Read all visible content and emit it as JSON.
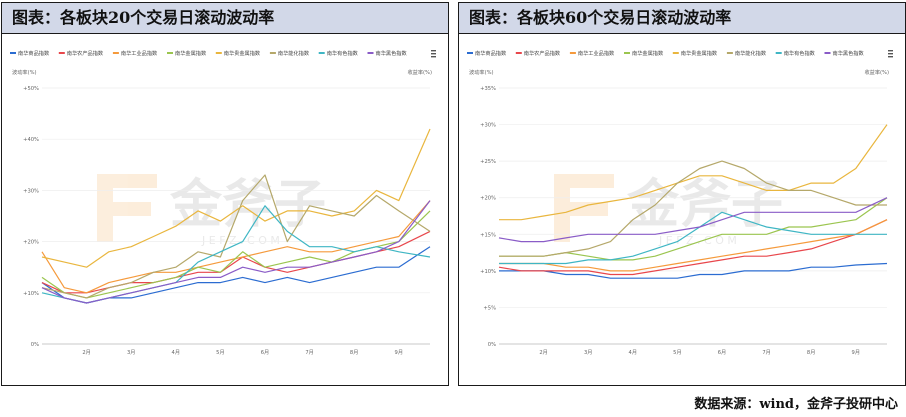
{
  "source_label": "数据来源：wind，金斧子投研中心",
  "watermark": {
    "brand": "金斧子",
    "url": "J E F Z . C O M"
  },
  "menu_icon": "hamburger-menu-icon",
  "chart_data": [
    {
      "type": "line",
      "title": "图表：各板块20个交易日滚动波动率",
      "ylabel": "波动率(%)",
      "ylabel_right": "收益率(%)",
      "ylim": [
        0,
        50
      ],
      "yticks": [
        0,
        10,
        20,
        30,
        40,
        50
      ],
      "ytick_labels": [
        "0%",
        "+10%",
        "+20%",
        "+30%",
        "+40%",
        "+50%"
      ],
      "x": [
        1.0,
        1.5,
        2.0,
        2.5,
        3.0,
        3.5,
        4.0,
        4.5,
        5.0,
        5.5,
        6.0,
        6.5,
        7.0,
        7.5,
        8.0,
        8.5,
        9.0,
        9.7
      ],
      "xticks": [
        2,
        3,
        4,
        5,
        6,
        7,
        8,
        9
      ],
      "xtick_labels": [
        "2月",
        "3月",
        "4月",
        "5月",
        "6月",
        "7月",
        "8月",
        "9月"
      ],
      "grid": true,
      "legend_position": "top-left",
      "series": [
        {
          "name": "南华商品指数",
          "color": "#2b6cd1",
          "values": [
            12,
            9,
            8,
            9,
            9,
            10,
            11,
            12,
            12,
            13,
            12,
            13,
            12,
            13,
            14,
            15,
            15,
            19
          ]
        },
        {
          "name": "南华农产品指数",
          "color": "#e8474c",
          "values": [
            12,
            10,
            10,
            11,
            12,
            12,
            13,
            14,
            14,
            17,
            15,
            14,
            15,
            16,
            17,
            18,
            19,
            22
          ]
        },
        {
          "name": "南华工业品指数",
          "color": "#f59a3c",
          "values": [
            18,
            11,
            10,
            12,
            13,
            14,
            14,
            15,
            16,
            17,
            18,
            19,
            18,
            18,
            19,
            20,
            21,
            28
          ]
        },
        {
          "name": "南华金属指数",
          "color": "#9bc54f",
          "values": [
            13,
            10,
            9,
            10,
            11,
            12,
            13,
            15,
            14,
            18,
            15,
            16,
            17,
            16,
            18,
            19,
            20,
            26
          ]
        },
        {
          "name": "南华贵金属指数",
          "color": "#e9b63e",
          "values": [
            17,
            16,
            15,
            18,
            19,
            21,
            23,
            26,
            24,
            27,
            24,
            26,
            26,
            25,
            26,
            30,
            28,
            42
          ]
        },
        {
          "name": "南华能化指数",
          "color": "#b5a86a",
          "values": [
            11,
            10,
            9,
            11,
            12,
            14,
            15,
            18,
            17,
            28,
            33,
            20,
            27,
            26,
            25,
            29,
            26,
            22
          ]
        },
        {
          "name": "南华有色指数",
          "color": "#3fb6c4",
          "values": [
            10,
            9,
            8,
            9,
            10,
            11,
            12,
            16,
            18,
            20,
            27,
            22,
            19,
            19,
            18,
            19,
            18,
            17
          ]
        },
        {
          "name": "南华黑色指数",
          "color": "#8a5cc7",
          "values": [
            11,
            9,
            8,
            9,
            10,
            11,
            12,
            13,
            13,
            15,
            14,
            15,
            15,
            16,
            17,
            18,
            20,
            28
          ]
        }
      ]
    },
    {
      "type": "line",
      "title": "图表：各板块60个交易日滚动波动率",
      "ylabel": "波动率(%)",
      "ylabel_right": "收益率(%)",
      "ylim": [
        0,
        35
      ],
      "yticks": [
        0,
        5,
        10,
        15,
        20,
        25,
        30,
        35
      ],
      "ytick_labels": [
        "0%",
        "+5%",
        "+10%",
        "+15%",
        "+20%",
        "+25%",
        "+30%",
        "+35%"
      ],
      "x": [
        1.0,
        1.5,
        2.0,
        2.5,
        3.0,
        3.5,
        4.0,
        4.5,
        5.0,
        5.5,
        6.0,
        6.5,
        7.0,
        7.5,
        8.0,
        8.5,
        9.0,
        9.7
      ],
      "xticks": [
        2,
        3,
        4,
        5,
        6,
        7,
        8,
        9
      ],
      "xtick_labels": [
        "2月",
        "3月",
        "4月",
        "5月",
        "6月",
        "7月",
        "8月",
        "9月"
      ],
      "grid": true,
      "legend_position": "top-left",
      "series": [
        {
          "name": "南华商品指数",
          "color": "#2b6cd1",
          "values": [
            10,
            10,
            10,
            9.5,
            9.5,
            9,
            9,
            9,
            9,
            9.5,
            9.5,
            10,
            10,
            10,
            10.5,
            10.5,
            10.8,
            11
          ]
        },
        {
          "name": "南华农产品指数",
          "color": "#e8474c",
          "values": [
            10.5,
            10,
            10,
            10,
            10,
            9.5,
            9.5,
            10,
            10.5,
            11,
            11.5,
            12,
            12,
            12.5,
            13,
            14,
            15,
            17
          ]
        },
        {
          "name": "南华工业品指数",
          "color": "#f59a3c",
          "values": [
            11,
            11,
            11,
            10.5,
            10.5,
            10,
            10,
            10.5,
            11,
            11.5,
            12,
            12.5,
            13,
            13.5,
            14,
            14.5,
            15,
            17
          ]
        },
        {
          "name": "南华金属指数",
          "color": "#9bc54f",
          "values": [
            12,
            12,
            12,
            12.5,
            12,
            11.5,
            11.5,
            12,
            13,
            14,
            15,
            15,
            15,
            16,
            16,
            16.5,
            17,
            20
          ]
        },
        {
          "name": "南华贵金属指数",
          "color": "#e9b63e",
          "values": [
            17,
            17,
            17.5,
            18,
            19,
            19.5,
            20,
            21,
            22,
            23,
            23,
            22,
            21,
            21,
            22,
            22,
            24,
            30
          ]
        },
        {
          "name": "南华能化指数",
          "color": "#b5a86a",
          "values": [
            12,
            12,
            12,
            12.5,
            13,
            14,
            17,
            19,
            22,
            24,
            25,
            24,
            22,
            21,
            21,
            20,
            19,
            19
          ]
        },
        {
          "name": "南华有色指数",
          "color": "#3fb6c4",
          "values": [
            11,
            11,
            11,
            11,
            11.5,
            11.5,
            12,
            13,
            14,
            16,
            18,
            17,
            16,
            15.5,
            15,
            15,
            15,
            15
          ]
        },
        {
          "name": "南华黑色指数",
          "color": "#8a5cc7",
          "values": [
            14.5,
            14,
            14,
            14.5,
            15,
            15,
            15,
            15,
            15.5,
            16,
            17,
            18,
            18,
            18,
            18,
            18,
            18,
            20
          ]
        }
      ]
    }
  ]
}
